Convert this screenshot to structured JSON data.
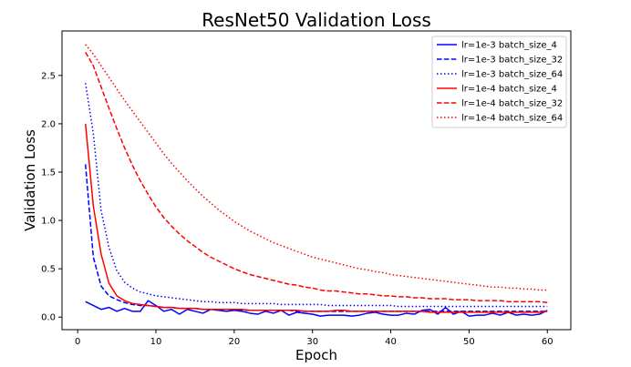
{
  "chart_data": {
    "type": "line",
    "title": "ResNet50 Validation Loss",
    "xlabel": "Epoch",
    "ylabel": "Validation Loss",
    "xlim": [
      -2.0,
      63.0
    ],
    "ylim": [
      -0.13,
      2.96
    ],
    "xticks": [
      0,
      10,
      20,
      30,
      40,
      50,
      60
    ],
    "yticks": [
      0.0,
      0.5,
      1.0,
      1.5,
      2.0,
      2.5
    ],
    "ytick_labels": [
      "0.0",
      "0.5",
      "1.0",
      "1.5",
      "2.0",
      "2.5"
    ],
    "grid": false,
    "legend_position": "upper right",
    "x": [
      1,
      2,
      3,
      4,
      5,
      6,
      7,
      8,
      9,
      10,
      11,
      12,
      13,
      14,
      15,
      16,
      17,
      18,
      19,
      20,
      21,
      22,
      23,
      24,
      25,
      26,
      27,
      28,
      29,
      30,
      31,
      32,
      33,
      34,
      35,
      36,
      37,
      38,
      39,
      40,
      41,
      42,
      43,
      44,
      45,
      46,
      47,
      48,
      49,
      50,
      51,
      52,
      53,
      54,
      55,
      56,
      57,
      58,
      59,
      60
    ],
    "series": [
      {
        "name": "lr=1e-3 batch_size_4",
        "color": "#0000ff",
        "dash": "solid",
        "values": [
          0.16,
          0.12,
          0.08,
          0.1,
          0.06,
          0.09,
          0.06,
          0.06,
          0.17,
          0.12,
          0.06,
          0.08,
          0.03,
          0.08,
          0.06,
          0.04,
          0.08,
          0.07,
          0.06,
          0.07,
          0.06,
          0.04,
          0.03,
          0.06,
          0.04,
          0.07,
          0.02,
          0.05,
          0.04,
          0.03,
          0.01,
          0.02,
          0.02,
          0.02,
          0.01,
          0.02,
          0.04,
          0.05,
          0.03,
          0.02,
          0.02,
          0.04,
          0.03,
          0.07,
          0.08,
          0.03,
          0.1,
          0.03,
          0.06,
          0.01,
          0.02,
          0.02,
          0.04,
          0.02,
          0.05,
          0.02,
          0.03,
          0.02,
          0.03,
          0.07
        ]
      },
      {
        "name": "lr=1e-3 batch_size_32",
        "color": "#0000ff",
        "dash": "dashed",
        "values": [
          1.58,
          0.62,
          0.32,
          0.22,
          0.18,
          0.15,
          0.13,
          0.12,
          0.12,
          0.11,
          0.1,
          0.1,
          0.09,
          0.09,
          0.09,
          0.08,
          0.08,
          0.08,
          0.08,
          0.08,
          0.07,
          0.07,
          0.07,
          0.07,
          0.07,
          0.07,
          0.07,
          0.06,
          0.06,
          0.06,
          0.06,
          0.06,
          0.06,
          0.06,
          0.06,
          0.06,
          0.06,
          0.06,
          0.06,
          0.06,
          0.06,
          0.06,
          0.06,
          0.06,
          0.06,
          0.06,
          0.06,
          0.06,
          0.06,
          0.06,
          0.06,
          0.06,
          0.06,
          0.06,
          0.06,
          0.06,
          0.06,
          0.06,
          0.06,
          0.06
        ]
      },
      {
        "name": "lr=1e-3 batch_size_64",
        "color": "#0000ff",
        "dash": "dotted",
        "values": [
          2.42,
          1.9,
          1.1,
          0.72,
          0.48,
          0.36,
          0.3,
          0.26,
          0.24,
          0.22,
          0.21,
          0.2,
          0.19,
          0.18,
          0.17,
          0.16,
          0.16,
          0.15,
          0.15,
          0.15,
          0.14,
          0.14,
          0.14,
          0.14,
          0.14,
          0.13,
          0.13,
          0.13,
          0.13,
          0.13,
          0.13,
          0.12,
          0.12,
          0.12,
          0.12,
          0.12,
          0.12,
          0.12,
          0.12,
          0.12,
          0.11,
          0.11,
          0.11,
          0.11,
          0.11,
          0.11,
          0.11,
          0.11,
          0.11,
          0.11,
          0.11,
          0.11,
          0.11,
          0.11,
          0.11,
          0.11,
          0.11,
          0.11,
          0.11,
          0.11
        ]
      },
      {
        "name": "lr=1e-4 batch_size_4",
        "color": "#ff0000",
        "dash": "solid",
        "values": [
          2.0,
          1.15,
          0.65,
          0.35,
          0.22,
          0.17,
          0.14,
          0.13,
          0.12,
          0.11,
          0.1,
          0.1,
          0.09,
          0.09,
          0.09,
          0.08,
          0.08,
          0.08,
          0.08,
          0.08,
          0.08,
          0.07,
          0.07,
          0.07,
          0.07,
          0.07,
          0.07,
          0.07,
          0.06,
          0.06,
          0.06,
          0.06,
          0.07,
          0.07,
          0.06,
          0.06,
          0.06,
          0.06,
          0.06,
          0.06,
          0.06,
          0.06,
          0.06,
          0.06,
          0.05,
          0.05,
          0.05,
          0.05,
          0.05,
          0.05,
          0.05,
          0.05,
          0.05,
          0.05,
          0.05,
          0.05,
          0.05,
          0.05,
          0.05,
          0.06
        ]
      },
      {
        "name": "lr=1e-4 batch_size_32",
        "color": "#ff0000",
        "dash": "dashed",
        "values": [
          2.74,
          2.6,
          2.38,
          2.16,
          1.95,
          1.75,
          1.57,
          1.41,
          1.27,
          1.14,
          1.03,
          0.94,
          0.86,
          0.79,
          0.73,
          0.67,
          0.62,
          0.58,
          0.54,
          0.5,
          0.47,
          0.44,
          0.42,
          0.4,
          0.38,
          0.36,
          0.34,
          0.33,
          0.31,
          0.3,
          0.28,
          0.27,
          0.27,
          0.26,
          0.25,
          0.24,
          0.24,
          0.23,
          0.22,
          0.22,
          0.21,
          0.21,
          0.2,
          0.2,
          0.19,
          0.19,
          0.19,
          0.18,
          0.18,
          0.18,
          0.17,
          0.17,
          0.17,
          0.17,
          0.16,
          0.16,
          0.16,
          0.16,
          0.16,
          0.15
        ]
      },
      {
        "name": "lr=1e-4 batch_size_64",
        "color": "#ff0000",
        "dash": "dotted",
        "values": [
          2.82,
          2.72,
          2.6,
          2.48,
          2.36,
          2.24,
          2.13,
          2.02,
          1.91,
          1.8,
          1.69,
          1.59,
          1.5,
          1.41,
          1.33,
          1.25,
          1.18,
          1.11,
          1.05,
          0.99,
          0.94,
          0.89,
          0.85,
          0.81,
          0.77,
          0.74,
          0.71,
          0.68,
          0.65,
          0.62,
          0.6,
          0.58,
          0.56,
          0.54,
          0.52,
          0.5,
          0.49,
          0.47,
          0.46,
          0.44,
          0.43,
          0.42,
          0.41,
          0.4,
          0.39,
          0.38,
          0.37,
          0.36,
          0.35,
          0.34,
          0.33,
          0.32,
          0.31,
          0.31,
          0.3,
          0.3,
          0.29,
          0.29,
          0.28,
          0.28
        ]
      }
    ]
  }
}
